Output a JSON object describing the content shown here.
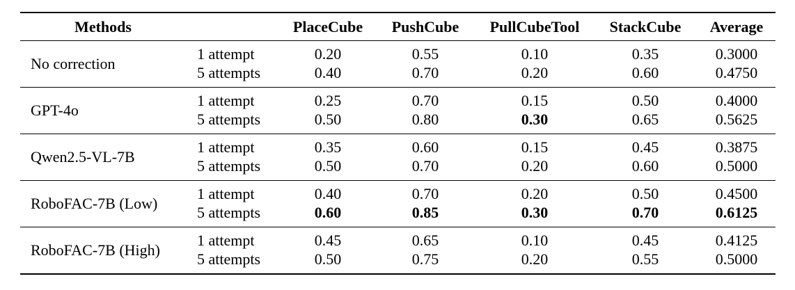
{
  "table": {
    "headers": [
      "Methods",
      "PlaceCube",
      "PushCube",
      "PullCubeTool",
      "StackCube",
      "Average"
    ],
    "groups": [
      {
        "method": "No correction",
        "rows": [
          {
            "attempts": "1 attempt",
            "values": [
              "0.20",
              "0.55",
              "0.10",
              "0.35",
              "0.3000"
            ],
            "bold": [
              false,
              false,
              false,
              false,
              false
            ]
          },
          {
            "attempts": "5 attempts",
            "values": [
              "0.40",
              "0.70",
              "0.20",
              "0.60",
              "0.4750"
            ],
            "bold": [
              false,
              false,
              false,
              false,
              false
            ]
          }
        ]
      },
      {
        "method": "GPT-4o",
        "rows": [
          {
            "attempts": "1 attempt",
            "values": [
              "0.25",
              "0.70",
              "0.15",
              "0.50",
              "0.4000"
            ],
            "bold": [
              false,
              false,
              false,
              false,
              false
            ]
          },
          {
            "attempts": "5 attempts",
            "values": [
              "0.50",
              "0.80",
              "0.30",
              "0.65",
              "0.5625"
            ],
            "bold": [
              false,
              false,
              true,
              false,
              false
            ]
          }
        ]
      },
      {
        "method": "Qwen2.5-VL-7B",
        "rows": [
          {
            "attempts": "1 attempt",
            "values": [
              "0.35",
              "0.60",
              "0.15",
              "0.45",
              "0.3875"
            ],
            "bold": [
              false,
              false,
              false,
              false,
              false
            ]
          },
          {
            "attempts": "5 attempts",
            "values": [
              "0.50",
              "0.70",
              "0.20",
              "0.60",
              "0.5000"
            ],
            "bold": [
              false,
              false,
              false,
              false,
              false
            ]
          }
        ]
      },
      {
        "method": "RoboFAC-7B (Low)",
        "rows": [
          {
            "attempts": "1 attempt",
            "values": [
              "0.40",
              "0.70",
              "0.20",
              "0.50",
              "0.4500"
            ],
            "bold": [
              false,
              false,
              false,
              false,
              false
            ]
          },
          {
            "attempts": "5 attempts",
            "values": [
              "0.60",
              "0.85",
              "0.30",
              "0.70",
              "0.6125"
            ],
            "bold": [
              true,
              true,
              true,
              true,
              true
            ]
          }
        ]
      },
      {
        "method": "RoboFAC-7B (High)",
        "rows": [
          {
            "attempts": "1 attempt",
            "values": [
              "0.45",
              "0.65",
              "0.10",
              "0.45",
              "0.4125"
            ],
            "bold": [
              false,
              false,
              false,
              false,
              false
            ]
          },
          {
            "attempts": "5 attempts",
            "values": [
              "0.50",
              "0.75",
              "0.20",
              "0.55",
              "0.5000"
            ],
            "bold": [
              false,
              false,
              false,
              false,
              false
            ]
          }
        ]
      }
    ]
  }
}
